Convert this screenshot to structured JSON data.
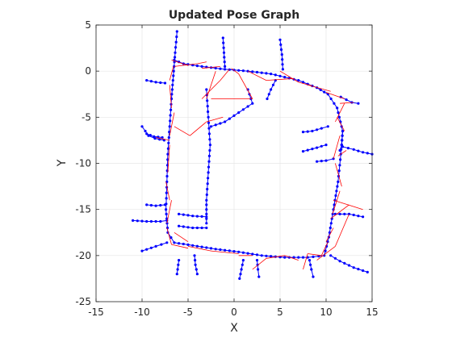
{
  "chart_data": {
    "type": "scatter",
    "title": "Updated Pose Graph",
    "xlabel": "X",
    "ylabel": "Y",
    "xlim": [
      -15,
      15
    ],
    "ylim": [
      -25,
      5
    ],
    "xticks": [
      -15,
      -10,
      -5,
      0,
      5,
      10,
      15
    ],
    "yticks": [
      5,
      0,
      -5,
      -10,
      -15,
      -20,
      -25
    ],
    "grid": true,
    "colors": {
      "trajectory": "#0000ff",
      "loop_closure": "#ff0000",
      "grid": "#e6e6e6",
      "axes": "#262626"
    },
    "series": [
      {
        "kind": "trajectory",
        "paths": [
          [
            [
              -6.2,
              4.3
            ],
            [
              -6.4,
              2.0
            ],
            [
              -6.6,
              -0.5
            ],
            [
              -6.8,
              -3.0
            ],
            [
              -7.0,
              -6.0
            ],
            [
              -7.2,
              -9.0
            ],
            [
              -7.3,
              -12.0
            ],
            [
              -7.4,
              -15.0
            ],
            [
              -7.2,
              -17.5
            ],
            [
              -6.5,
              -18.6
            ],
            [
              -4.5,
              -18.9
            ],
            [
              -2.0,
              -19.3
            ],
            [
              0.5,
              -19.6
            ],
            [
              3.0,
              -20.0
            ],
            [
              5.5,
              -20.2
            ],
            [
              8.0,
              -20.2
            ],
            [
              9.8,
              -20.0
            ],
            [
              10.3,
              -18.0
            ],
            [
              10.8,
              -15.0
            ],
            [
              11.3,
              -12.0
            ],
            [
              11.6,
              -9.0
            ],
            [
              11.8,
              -6.5
            ],
            [
              11.2,
              -4.0
            ],
            [
              10.2,
              -2.5
            ],
            [
              9.0,
              -1.8
            ],
            [
              7.0,
              -1.0
            ],
            [
              4.0,
              -0.3
            ],
            [
              1.5,
              0.0
            ],
            [
              -1.0,
              0.2
            ],
            [
              -3.5,
              0.5
            ],
            [
              -5.5,
              0.8
            ],
            [
              -6.5,
              1.2
            ]
          ],
          [
            [
              -10.0,
              -6.0
            ],
            [
              -9.3,
              -7.0
            ],
            [
              -8.6,
              -7.3
            ],
            [
              -7.6,
              -7.5
            ]
          ],
          [
            [
              -9.5,
              -6.8
            ],
            [
              -8.7,
              -7.1
            ],
            [
              -7.8,
              -7.2
            ]
          ],
          [
            [
              -9.5,
              -1.0
            ],
            [
              -8.5,
              -1.2
            ],
            [
              -7.5,
              -1.3
            ]
          ],
          [
            [
              -11.0,
              -16.2
            ],
            [
              -9.5,
              -16.3
            ],
            [
              -8.0,
              -16.3
            ],
            [
              -7.3,
              -16.2
            ]
          ],
          [
            [
              -9.5,
              -14.5
            ],
            [
              -8.5,
              -14.6
            ],
            [
              -7.5,
              -14.5
            ]
          ],
          [
            [
              -10.0,
              -19.5
            ],
            [
              -8.5,
              -19.0
            ],
            [
              -7.3,
              -18.6
            ]
          ],
          [
            [
              -3.0,
              -2.0
            ],
            [
              -2.8,
              -5.0
            ],
            [
              -2.6,
              -8.0
            ],
            [
              -2.8,
              -11.0
            ],
            [
              -3.0,
              -14.0
            ],
            [
              -3.0,
              -16.5
            ]
          ],
          [
            [
              -6.0,
              -15.5
            ],
            [
              -4.5,
              -15.7
            ],
            [
              -3.0,
              -15.8
            ]
          ],
          [
            [
              -6.0,
              -16.8
            ],
            [
              -4.5,
              -17.0
            ],
            [
              -3.0,
              -17.0
            ]
          ],
          [
            [
              1.5,
              -2.0
            ],
            [
              2.0,
              -3.5
            ],
            [
              0.5,
              -4.5
            ],
            [
              -1.0,
              -5.5
            ],
            [
              -2.5,
              -6.0
            ]
          ],
          [
            [
              -1.2,
              3.6
            ],
            [
              -1.1,
              2.0
            ],
            [
              -1.0,
              0.5
            ]
          ],
          [
            [
              5.0,
              3.4
            ],
            [
              5.2,
              1.8
            ],
            [
              5.3,
              0.2
            ]
          ],
          [
            [
              -6.0,
              -20.5
            ],
            [
              -6.2,
              -22.0
            ]
          ],
          [
            [
              -4.3,
              -20.0
            ],
            [
              -4.2,
              -21.0
            ],
            [
              -4.0,
              -22.0
            ]
          ],
          [
            [
              1.0,
              -20.5
            ],
            [
              0.8,
              -21.5
            ],
            [
              0.6,
              -22.5
            ]
          ],
          [
            [
              2.5,
              -20.5
            ],
            [
              2.6,
              -21.5
            ],
            [
              2.7,
              -22.3
            ]
          ],
          [
            [
              8.2,
              -20.5
            ],
            [
              8.4,
              -21.5
            ],
            [
              8.6,
              -22.3
            ]
          ],
          [
            [
              10.5,
              -20.0
            ],
            [
              11.5,
              -20.6
            ],
            [
              13.0,
              -21.3
            ],
            [
              14.5,
              -21.8
            ]
          ],
          [
            [
              10.2,
              -6.0
            ],
            [
              9.5,
              -6.2
            ],
            [
              8.5,
              -6.5
            ],
            [
              7.5,
              -6.6
            ]
          ],
          [
            [
              10.0,
              -8.0
            ],
            [
              9.0,
              -8.3
            ],
            [
              7.5,
              -8.7
            ]
          ],
          [
            [
              11.8,
              -6.5
            ],
            [
              11.7,
              -8.0
            ],
            [
              11.5,
              -8.6
            ]
          ],
          [
            [
              11.8,
              -8.2
            ],
            [
              13.0,
              -8.5
            ],
            [
              14.0,
              -8.8
            ],
            [
              15.0,
              -9.0
            ]
          ],
          [
            [
              10.8,
              -9.5
            ],
            [
              10.0,
              -9.7
            ],
            [
              9.0,
              -9.8
            ]
          ],
          [
            [
              11.0,
              -15.5
            ],
            [
              12.5,
              -15.5
            ],
            [
              14.0,
              -15.8
            ]
          ],
          [
            [
              11.6,
              -2.8
            ],
            [
              12.8,
              -3.4
            ],
            [
              13.5,
              -3.5
            ]
          ],
          [
            [
              4.5,
              -1.0
            ],
            [
              4.0,
              -2.0
            ],
            [
              3.6,
              -3.0
            ]
          ]
        ]
      },
      {
        "kind": "loop_closure",
        "segments": [
          [
            [
              -6.8,
              1.2
            ],
            [
              -5.0,
              0.6
            ]
          ],
          [
            [
              -6.5,
              0.5
            ],
            [
              -4.0,
              0.8
            ]
          ],
          [
            [
              -4.0,
              0.8
            ],
            [
              -3.0,
              1.0
            ]
          ],
          [
            [
              -3.5,
              0.3
            ],
            [
              -1.5,
              0.5
            ]
          ],
          [
            [
              -2.0,
              0.0
            ],
            [
              -3.0,
              -3.0
            ]
          ],
          [
            [
              -3.5,
              -3.0
            ],
            [
              -1.5,
              -1.0
            ]
          ],
          [
            [
              -1.5,
              -1.0
            ],
            [
              -0.5,
              0.2
            ]
          ],
          [
            [
              -0.3,
              0.3
            ],
            [
              0.5,
              -0.3
            ]
          ],
          [
            [
              0.5,
              -0.3
            ],
            [
              2.0,
              -3.0
            ]
          ],
          [
            [
              2.0,
              -3.0
            ],
            [
              -2.5,
              -3.0
            ]
          ],
          [
            [
              1.5,
              0.0
            ],
            [
              3.5,
              -1.0
            ]
          ],
          [
            [
              3.5,
              -1.0
            ],
            [
              6.5,
              -0.8
            ]
          ],
          [
            [
              5.0,
              0.0
            ],
            [
              7.0,
              -1.2
            ]
          ],
          [
            [
              7.0,
              -1.2
            ],
            [
              8.5,
              -1.6
            ]
          ],
          [
            [
              8.0,
              -1.5
            ],
            [
              10.5,
              -2.2
            ]
          ],
          [
            [
              10.0,
              -2.3
            ],
            [
              12.0,
              -3.0
            ]
          ],
          [
            [
              11.5,
              -3.5
            ],
            [
              13.0,
              -3.4
            ]
          ],
          [
            [
              12.0,
              -3.5
            ],
            [
              11.0,
              -5.5
            ]
          ],
          [
            [
              11.2,
              -5.0
            ],
            [
              12.0,
              -6.5
            ]
          ],
          [
            [
              11.5,
              -7.0
            ],
            [
              10.8,
              -9.5
            ]
          ],
          [
            [
              11.3,
              -9.2
            ],
            [
              12.2,
              -8.6
            ]
          ],
          [
            [
              11.0,
              -10.0
            ],
            [
              11.7,
              -12.5
            ]
          ],
          [
            [
              11.5,
              -13.0
            ],
            [
              10.7,
              -15.5
            ]
          ],
          [
            [
              10.8,
              -14.0
            ],
            [
              14.0,
              -15.0
            ]
          ],
          [
            [
              10.5,
              -16.0
            ],
            [
              12.5,
              -14.5
            ]
          ],
          [
            [
              10.8,
              -17.0
            ],
            [
              10.0,
              -18.5
            ]
          ],
          [
            [
              10.2,
              -18.5
            ],
            [
              9.5,
              -20.0
            ]
          ],
          [
            [
              9.5,
              -20.0
            ],
            [
              8.0,
              -19.8
            ]
          ],
          [
            [
              8.0,
              -19.8
            ],
            [
              7.5,
              -21.5
            ]
          ],
          [
            [
              7.0,
              -20.5
            ],
            [
              5.5,
              -20.0
            ]
          ],
          [
            [
              5.5,
              -20.0
            ],
            [
              3.5,
              -20.3
            ]
          ],
          [
            [
              3.5,
              -20.3
            ],
            [
              2.0,
              -21.5
            ]
          ],
          [
            [
              2.0,
              -20.0
            ],
            [
              0.5,
              -20.0
            ]
          ],
          [
            [
              0.5,
              -19.8
            ],
            [
              -2.5,
              -19.5
            ]
          ],
          [
            [
              -2.5,
              -19.5
            ],
            [
              -5.0,
              -19.0
            ]
          ],
          [
            [
              -5.0,
              -19.2
            ],
            [
              -6.8,
              -18.8
            ]
          ],
          [
            [
              -6.8,
              -18.8
            ],
            [
              -7.3,
              -17.0
            ]
          ],
          [
            [
              -7.3,
              -16.5
            ],
            [
              -6.8,
              -14.0
            ]
          ],
          [
            [
              -7.0,
              -14.0
            ],
            [
              -7.4,
              -12.0
            ]
          ],
          [
            [
              -7.2,
              -11.0
            ],
            [
              -7.0,
              -8.0
            ]
          ],
          [
            [
              -7.0,
              -7.5
            ],
            [
              -8.5,
              -7.2
            ]
          ],
          [
            [
              -7.0,
              -7.0
            ],
            [
              -6.5,
              -4.5
            ]
          ],
          [
            [
              -6.8,
              -4.0
            ],
            [
              -7.0,
              -1.5
            ]
          ],
          [
            [
              -7.0,
              -1.0
            ],
            [
              -6.6,
              0.5
            ]
          ],
          [
            [
              -6.5,
              -6.0
            ],
            [
              -4.8,
              -7.0
            ]
          ],
          [
            [
              -4.8,
              -7.0
            ],
            [
              -3.0,
              -5.5
            ]
          ],
          [
            [
              -3.0,
              -5.5
            ],
            [
              -1.2,
              -5.0
            ]
          ],
          [
            [
              -6.5,
              -17.5
            ],
            [
              -5.0,
              -18.5
            ]
          ],
          [
            [
              9.0,
              -20.5
            ],
            [
              11.0,
              -19.0
            ]
          ],
          [
            [
              11.0,
              -19.0
            ],
            [
              12.5,
              -15.5
            ]
          ]
        ]
      }
    ]
  }
}
